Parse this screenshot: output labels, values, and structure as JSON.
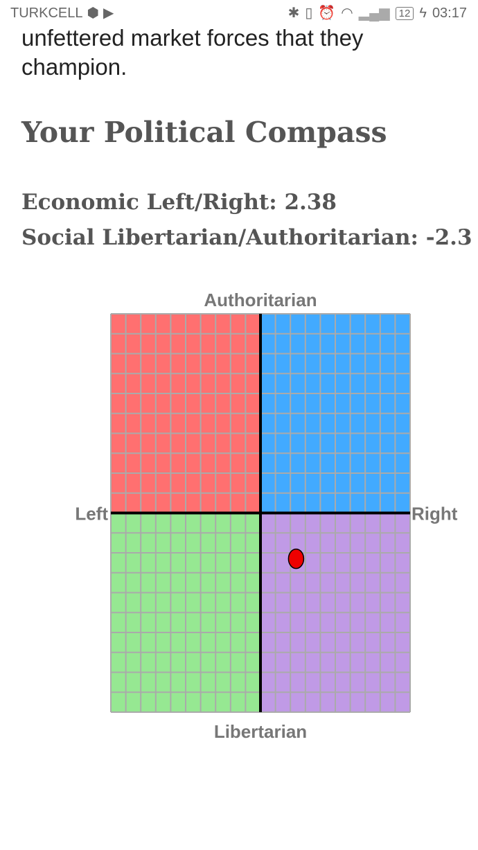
{
  "status_bar": {
    "carrier": "TURKCELL",
    "battery": "12",
    "time": "03:17",
    "icons": [
      "sync-icon",
      "play-store-icon",
      "bluetooth-icon",
      "vibrate-icon",
      "alarm-icon",
      "wifi-icon",
      "signal-icon",
      "battery-icon",
      "charging-icon"
    ]
  },
  "article": {
    "clipped_line": "unfettered market forces that they",
    "last_line": "champion."
  },
  "result": {
    "title": "Your Political Compass",
    "economic_label": "Economic Left/Right: 2.38",
    "social_label": "Social Libertarian/Authoritarian: -2.3"
  },
  "chart_data": {
    "type": "scatter",
    "labels": {
      "top": "Authoritarian",
      "bottom": "Libertarian",
      "left": "Left",
      "right": "Right"
    },
    "xlim": [
      -10,
      10
    ],
    "ylim": [
      -10,
      10
    ],
    "grid": true,
    "quadrant_colors": {
      "top_left": "#ff7070",
      "top_right": "#42aaff",
      "bottom_left": "#96e892",
      "bottom_right": "#c09ae6"
    },
    "point": {
      "economic": 2.38,
      "social": -2.3,
      "color": "#ee0000"
    }
  }
}
